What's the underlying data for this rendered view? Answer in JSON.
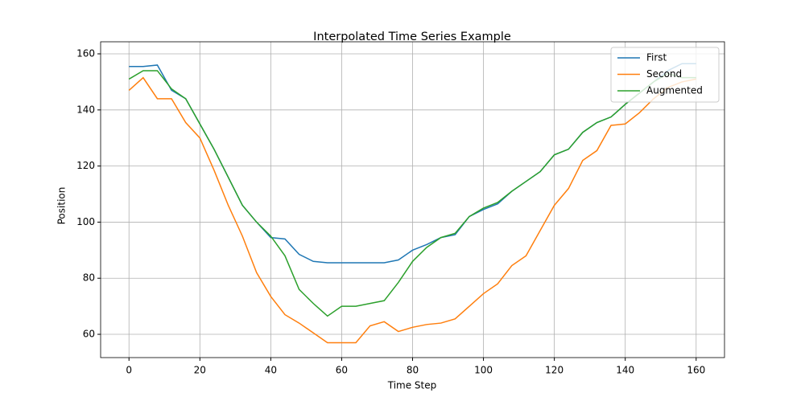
{
  "chart_data": {
    "type": "line",
    "title": "Interpolated Time Series Example",
    "xlabel": "Time Step",
    "ylabel": "Position",
    "x": [
      0,
      4,
      8,
      12,
      16,
      20,
      24,
      28,
      32,
      36,
      40,
      44,
      48,
      52,
      56,
      60,
      64,
      68,
      72,
      76,
      80,
      84,
      88,
      92,
      96,
      100,
      104,
      108,
      112,
      116,
      120,
      124,
      128,
      132,
      136,
      140,
      144,
      148,
      152,
      156,
      160
    ],
    "series": [
      {
        "name": "First",
        "color": "#1f77b4",
        "values": [
          155.5,
          155.5,
          156,
          147,
          144,
          135,
          126,
          116,
          106,
          100,
          94.5,
          94,
          88.5,
          86,
          85.5,
          85.5,
          85.5,
          85.5,
          85.5,
          86.5,
          90,
          92,
          94.5,
          95.5,
          102,
          104.5,
          106.5,
          111,
          114.5,
          118,
          124,
          126,
          132,
          135.5,
          137.5,
          142,
          146,
          150,
          154,
          156.5,
          156.5
        ]
      },
      {
        "name": "Second",
        "color": "#ff7f0e",
        "values": [
          147,
          151.5,
          144,
          144,
          135.5,
          130,
          118.5,
          106,
          95,
          82,
          73.5,
          67,
          64,
          60.5,
          57,
          57,
          57,
          63,
          64.5,
          61,
          62.5,
          63.5,
          64,
          65.5,
          70,
          74.5,
          78,
          84.5,
          88,
          97,
          106,
          112,
          122,
          125.5,
          134.5,
          135,
          139,
          144,
          148,
          150,
          151
        ]
      },
      {
        "name": "Augmented",
        "color": "#2ca02c",
        "values": [
          151,
          154,
          154,
          147.5,
          144,
          135,
          126,
          116,
          106,
          100,
          95,
          88,
          76,
          71,
          66.5,
          70,
          70,
          71,
          72,
          78.5,
          86,
          91,
          94.5,
          96,
          102,
          105,
          107,
          111,
          114.5,
          118,
          124,
          126,
          132,
          135.5,
          137.5,
          142,
          146,
          150,
          153,
          151.5,
          151.5
        ]
      }
    ],
    "xlim": [
      -8,
      168
    ],
    "ylim": [
      51.7,
      164.3
    ],
    "xticks": [
      0,
      20,
      40,
      60,
      80,
      100,
      120,
      140,
      160
    ],
    "yticks": [
      60,
      80,
      100,
      120,
      140,
      160
    ],
    "grid": true,
    "legend": "upper right"
  }
}
